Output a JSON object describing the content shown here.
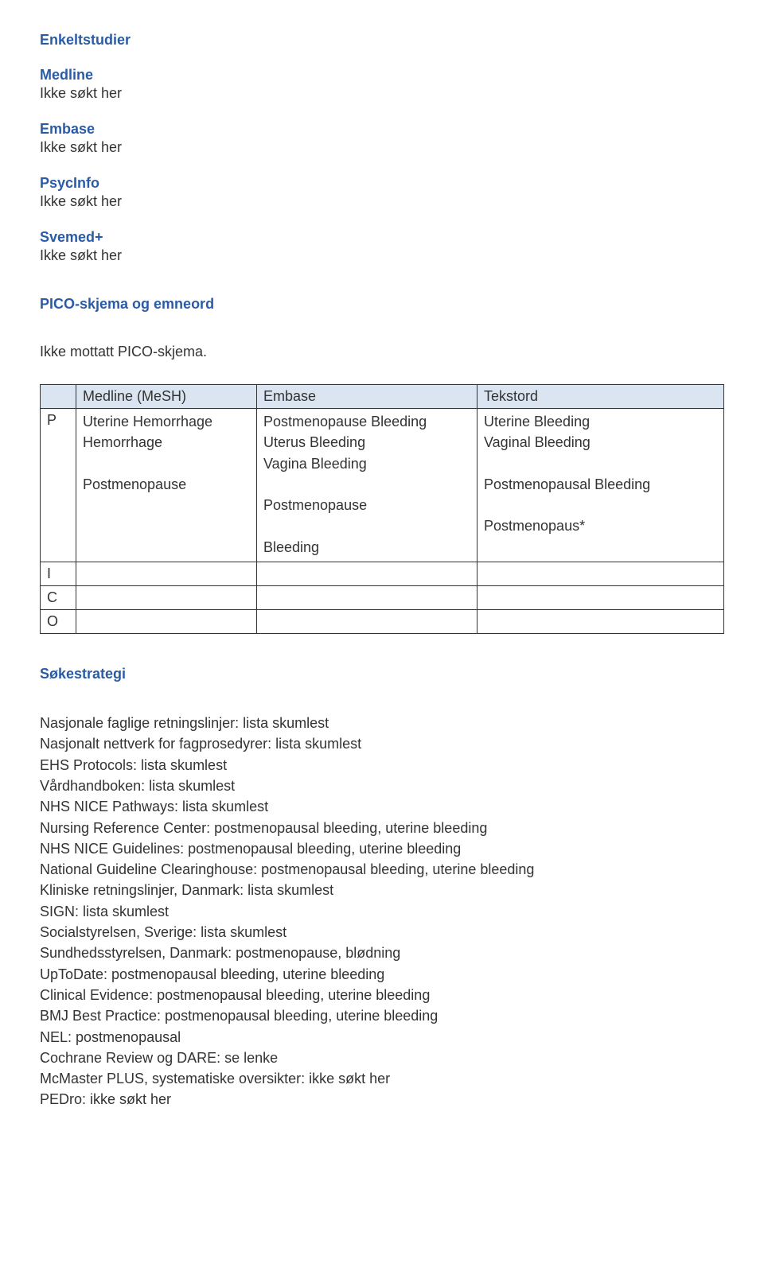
{
  "heading_main": "Enkeltstudier",
  "databases": [
    {
      "name": "Medline",
      "status": "Ikke søkt her"
    },
    {
      "name": "Embase",
      "status": "Ikke søkt her"
    },
    {
      "name": "PsycInfo",
      "status": "Ikke søkt her"
    },
    {
      "name": "Svemed+",
      "status": "Ikke søkt her"
    }
  ],
  "pico_heading": "PICO-skjema og emneord",
  "pico_note": "Ikke mottatt PICO-skjema.",
  "table": {
    "headers": {
      "blank": "",
      "col1": "Medline (MeSH)",
      "col2": "Embase",
      "col3": "Tekstord"
    },
    "rows": [
      {
        "label": "P",
        "medline": [
          "Uterine Hemorrhage",
          "Hemorrhage",
          "",
          "Postmenopause"
        ],
        "embase": [
          "Postmenopause Bleeding",
          "Uterus Bleeding",
          "Vagina Bleeding",
          "",
          "Postmenopause",
          "",
          "Bleeding"
        ],
        "tekstord": [
          "Uterine Bleeding",
          "Vaginal Bleeding",
          "",
          "Postmenopausal Bleeding",
          "",
          "Postmenopaus*"
        ]
      },
      {
        "label": "I",
        "medline": [],
        "embase": [],
        "tekstord": []
      },
      {
        "label": "C",
        "medline": [],
        "embase": [],
        "tekstord": []
      },
      {
        "label": "O",
        "medline": [],
        "embase": [],
        "tekstord": []
      }
    ]
  },
  "strategy_heading": "Søkestrategi",
  "strategy_lines": [
    "Nasjonale faglige retningslinjer: lista skumlest",
    "Nasjonalt nettverk for fagprosedyrer: lista skumlest",
    "EHS Protocols: lista skumlest",
    "Vårdhandboken: lista skumlest",
    "NHS NICE Pathways: lista skumlest",
    "Nursing Reference Center: postmenopausal bleeding, uterine bleeding",
    "NHS NICE Guidelines: postmenopausal bleeding, uterine bleeding",
    "National Guideline Clearinghouse: postmenopausal bleeding, uterine bleeding",
    "Kliniske retningslinjer, Danmark: lista skumlest",
    "SIGN: lista skumlest",
    "Socialstyrelsen, Sverige: lista skumlest",
    "Sundhedsstyrelsen, Danmark: postmenopause, blødning",
    "UpToDate: postmenopausal bleeding, uterine bleeding",
    "Clinical Evidence: postmenopausal bleeding, uterine bleeding",
    "BMJ Best Practice: postmenopausal bleeding, uterine bleeding",
    "NEL: postmenopausal",
    "Cochrane Review og DARE: se lenke",
    "McMaster PLUS, systematiske oversikter: ikke søkt her",
    "PEDro: ikke søkt her"
  ]
}
